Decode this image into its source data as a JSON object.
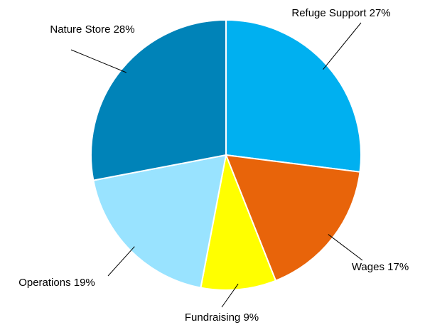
{
  "chart_data": {
    "type": "pie",
    "categories": [
      "Refuge Support",
      "Wages",
      "Fundraising",
      "Operations",
      "Nature Store"
    ],
    "values": [
      27,
      17,
      9,
      19,
      28
    ],
    "value_labels": [
      "27%",
      "17%",
      "9%",
      "19%",
      "28%"
    ],
    "colors": [
      "#00b0f0",
      "#e8640a",
      "#ffff00",
      "#99e3ff",
      "#0083b8"
    ]
  }
}
